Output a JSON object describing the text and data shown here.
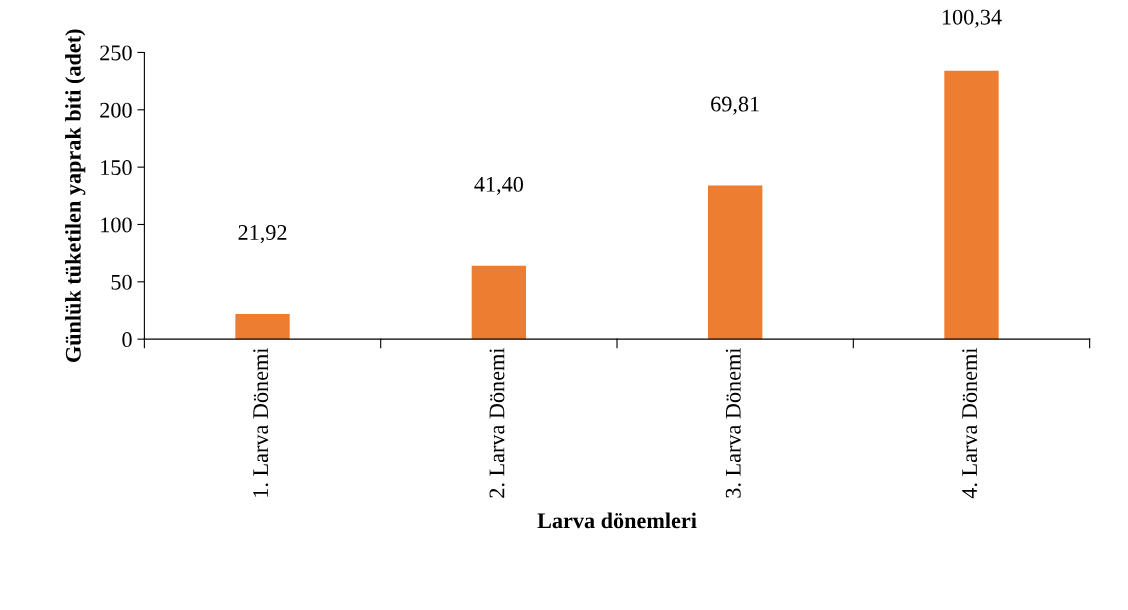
{
  "chart_data": {
    "type": "bar",
    "xlabel": "Larva dönemleri",
    "ylabel": "Günlük tüketilen yaprak biti (adet)",
    "categories": [
      "1. Larva Dönemi",
      "2. Larva Dönemi",
      "3. Larva Dönemi",
      "4. Larva Dönemi"
    ],
    "values": [
      22,
      64,
      134,
      234
    ],
    "annotations": [
      "21,92",
      "41,40",
      "69,81",
      "100,34"
    ],
    "color": "#ed7d31",
    "ylim": [
      0,
      250
    ],
    "yticks": [
      0,
      50,
      100,
      150,
      200,
      250
    ],
    "grid": false,
    "legend": false
  }
}
